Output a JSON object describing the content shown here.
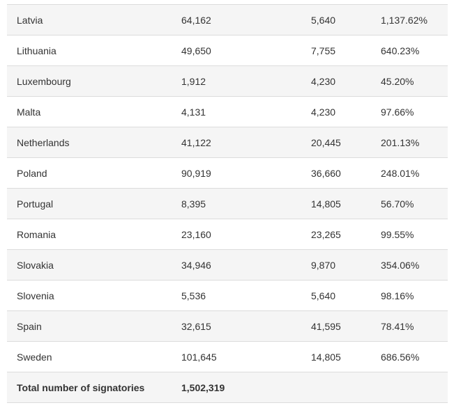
{
  "table": {
    "rows": [
      {
        "country": "Latvia",
        "signatures": "64,162",
        "threshold": "5,640",
        "percentage": "1,137.62%"
      },
      {
        "country": "Lithuania",
        "signatures": "49,650",
        "threshold": "7,755",
        "percentage": "640.23%"
      },
      {
        "country": "Luxembourg",
        "signatures": "1,912",
        "threshold": "4,230",
        "percentage": "45.20%"
      },
      {
        "country": "Malta",
        "signatures": "4,131",
        "threshold": "4,230",
        "percentage": "97.66%"
      },
      {
        "country": "Netherlands",
        "signatures": "41,122",
        "threshold": "20,445",
        "percentage": "201.13%"
      },
      {
        "country": "Poland",
        "signatures": "90,919",
        "threshold": "36,660",
        "percentage": "248.01%"
      },
      {
        "country": "Portugal",
        "signatures": "8,395",
        "threshold": "14,805",
        "percentage": "56.70%"
      },
      {
        "country": "Romania",
        "signatures": "23,160",
        "threshold": "23,265",
        "percentage": "99.55%"
      },
      {
        "country": "Slovakia",
        "signatures": "34,946",
        "threshold": "9,870",
        "percentage": "354.06%"
      },
      {
        "country": "Slovenia",
        "signatures": "5,536",
        "threshold": "5,640",
        "percentage": "98.16%"
      },
      {
        "country": "Spain",
        "signatures": "32,615",
        "threshold": "41,595",
        "percentage": "78.41%"
      },
      {
        "country": "Sweden",
        "signatures": "101,645",
        "threshold": "14,805",
        "percentage": "686.56%"
      }
    ],
    "total": {
      "label": "Total number of signatories",
      "value": "1,502,319"
    }
  }
}
